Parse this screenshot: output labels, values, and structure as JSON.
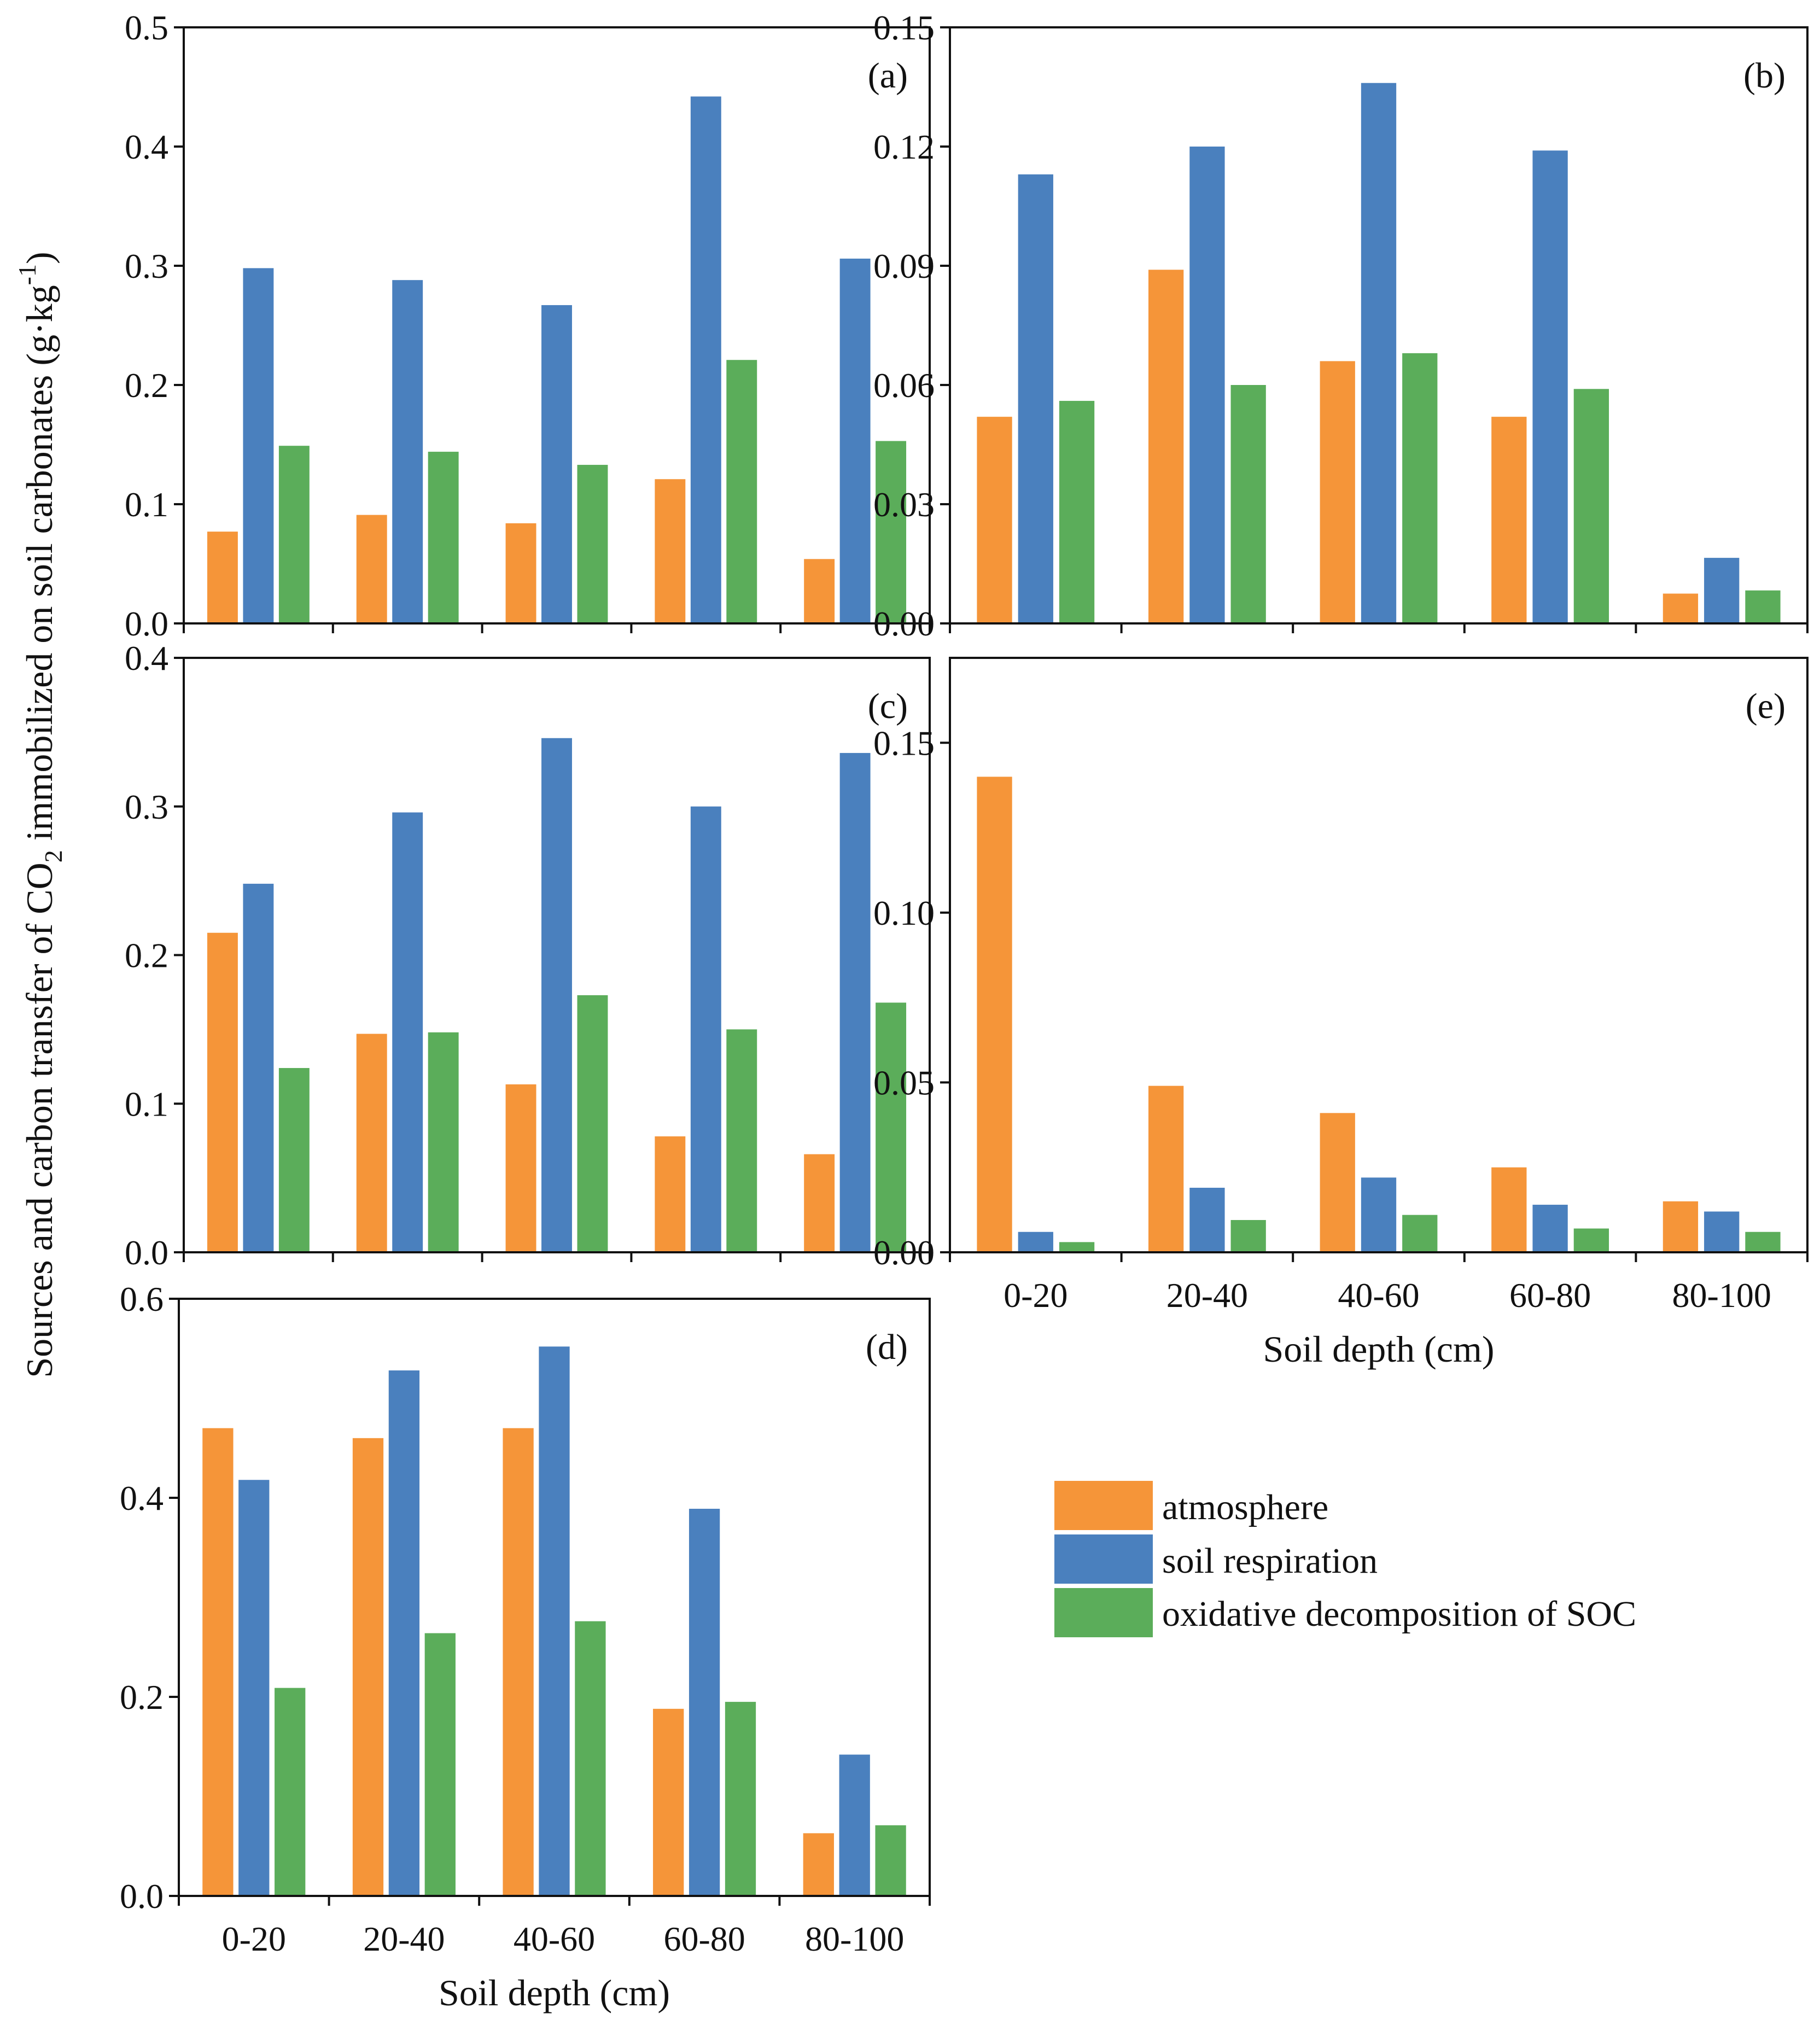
{
  "figure": {
    "ylabel_pre": "Sources and carbon transfer of CO",
    "ylabel_sub": "2",
    "ylabel_post": " immobilized on soil carbonates (g·kg",
    "ylabel_sup": "-1",
    "ylabel_close": ")"
  },
  "legend": {
    "atmosphere": "atmosphere",
    "soil_respiration": "soil respiration",
    "oxidative": "oxidative decomposition of SOC"
  },
  "colors": {
    "atmosphere": "#F59539",
    "soil_respiration": "#4A80BE",
    "oxidative": "#5BAD5A"
  },
  "chart_data": [
    {
      "id": "a",
      "type": "bar",
      "label": "(a)",
      "categories": [
        "0-20",
        "20-40",
        "40-60",
        "60-80",
        "80-100"
      ],
      "ylim": [
        0,
        0.5
      ],
      "yticks": [
        "0.0",
        "0.1",
        "0.2",
        "0.3",
        "0.4",
        "0.5"
      ],
      "xlabel": "",
      "show_xticklabels": false,
      "series": [
        {
          "name": "atmosphere",
          "values": [
            0.077,
            0.091,
            0.084,
            0.121,
            0.054
          ]
        },
        {
          "name": "soil respiration",
          "values": [
            0.298,
            0.288,
            0.267,
            0.442,
            0.306
          ]
        },
        {
          "name": "oxidative decomposition of SOC",
          "values": [
            0.149,
            0.144,
            0.133,
            0.221,
            0.153
          ]
        }
      ]
    },
    {
      "id": "b",
      "type": "bar",
      "label": "(b)",
      "categories": [
        "0-20",
        "20-40",
        "40-60",
        "60-80",
        "80-100"
      ],
      "ylim": [
        0,
        0.15
      ],
      "yticks": [
        "0.00",
        "0.03",
        "0.06",
        "0.09",
        "0.12",
        "0.15"
      ],
      "xlabel": "",
      "show_xticklabels": false,
      "series": [
        {
          "name": "atmosphere",
          "values": [
            0.052,
            0.089,
            0.066,
            0.052,
            0.0075
          ]
        },
        {
          "name": "soil respiration",
          "values": [
            0.113,
            0.12,
            0.136,
            0.119,
            0.0165
          ]
        },
        {
          "name": "oxidative decomposition of SOC",
          "values": [
            0.056,
            0.06,
            0.068,
            0.059,
            0.0083
          ]
        }
      ]
    },
    {
      "id": "c",
      "type": "bar",
      "label": "(c)",
      "categories": [
        "0-20",
        "20-40",
        "40-60",
        "60-80",
        "80-100"
      ],
      "ylim": [
        0,
        0.4
      ],
      "yticks": [
        "0.0",
        "0.1",
        "0.2",
        "0.3",
        "0.4"
      ],
      "xlabel": "",
      "show_xticklabels": false,
      "series": [
        {
          "name": "atmosphere",
          "values": [
            0.215,
            0.147,
            0.113,
            0.078,
            0.066
          ]
        },
        {
          "name": "soil respiration",
          "values": [
            0.248,
            0.296,
            0.346,
            0.3,
            0.336
          ]
        },
        {
          "name": "oxidative decomposition of SOC",
          "values": [
            0.124,
            0.148,
            0.173,
            0.15,
            0.168
          ]
        }
      ]
    },
    {
      "id": "e",
      "type": "bar",
      "label": "(e)",
      "categories": [
        "0-20",
        "20-40",
        "40-60",
        "60-80",
        "80-100"
      ],
      "ylim": [
        0,
        0.175
      ],
      "yticks": [
        "0.00",
        "0.05",
        "0.10",
        "0.15"
      ],
      "ytick_values": [
        0,
        0.05,
        0.1,
        0.15
      ],
      "xlabel": "Soil depth (cm)",
      "show_xticklabels": true,
      "series": [
        {
          "name": "atmosphere",
          "values": [
            0.14,
            0.049,
            0.041,
            0.025,
            0.015
          ]
        },
        {
          "name": "soil respiration",
          "values": [
            0.006,
            0.019,
            0.022,
            0.014,
            0.012
          ]
        },
        {
          "name": "oxidative decomposition of SOC",
          "values": [
            0.003,
            0.0095,
            0.011,
            0.007,
            0.006
          ]
        }
      ]
    },
    {
      "id": "d",
      "type": "bar",
      "label": "(d)",
      "categories": [
        "0-20",
        "20-40",
        "40-60",
        "60-80",
        "80-100"
      ],
      "ylim": [
        0,
        0.6
      ],
      "yticks": [
        "0.0",
        "0.2",
        "0.4",
        "0.6"
      ],
      "xlabel": "Soil depth (cm)",
      "show_xticklabels": true,
      "series": [
        {
          "name": "atmosphere",
          "values": [
            0.47,
            0.46,
            0.47,
            0.188,
            0.063
          ]
        },
        {
          "name": "soil respiration",
          "values": [
            0.418,
            0.528,
            0.552,
            0.389,
            0.142
          ]
        },
        {
          "name": "oxidative decomposition of SOC",
          "values": [
            0.209,
            0.264,
            0.276,
            0.195,
            0.071
          ]
        }
      ]
    }
  ]
}
